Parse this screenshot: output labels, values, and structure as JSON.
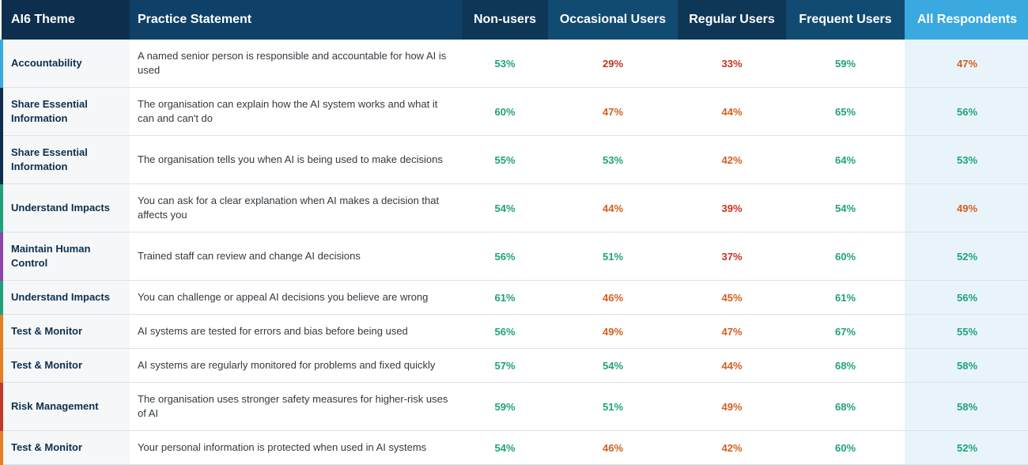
{
  "colors": {
    "header_dark": "#0d2f4d",
    "header_mid": "#124b72",
    "header_accent": "#3aa9e0",
    "good": "#1fa27a",
    "medium": "#d35f1e",
    "poor": "#c8321f"
  },
  "headers": {
    "theme": "AI6 Theme",
    "statement": "Practice Statement",
    "non_users": "Non-users",
    "occasional": "Occasional Users",
    "regular": "Regular Users",
    "frequent": "Frequent Users",
    "all": "All Respondents"
  },
  "rows": [
    {
      "theme": "Accountability",
      "theme_color": "#3aa9e0",
      "statement": "A named senior person is responsible and accountable for how AI is used",
      "non": "53%",
      "occ": "29%",
      "reg": "33%",
      "freq": "59%",
      "all": "47%",
      "c_non": "green",
      "c_occ": "red",
      "c_reg": "red",
      "c_freq": "green",
      "c_all": "orange"
    },
    {
      "theme": "Share Essential Information",
      "theme_color": "#0d2f4d",
      "statement": "The organisation can explain how the AI system works and what it can and can't do",
      "non": "60%",
      "occ": "47%",
      "reg": "44%",
      "freq": "65%",
      "all": "56%",
      "c_non": "green",
      "c_occ": "orange",
      "c_reg": "orange",
      "c_freq": "green",
      "c_all": "green"
    },
    {
      "theme": "Share Essential Information",
      "theme_color": "#0d2f4d",
      "statement": "The organisation tells you when AI is being used to make decisions",
      "non": "55%",
      "occ": "53%",
      "reg": "42%",
      "freq": "64%",
      "all": "53%",
      "c_non": "green",
      "c_occ": "green",
      "c_reg": "orange",
      "c_freq": "green",
      "c_all": "green"
    },
    {
      "theme": "Understand Impacts",
      "theme_color": "#1fa27a",
      "statement": "You can ask for a clear explanation when AI makes a decision that affects you",
      "non": "54%",
      "occ": "44%",
      "reg": "39%",
      "freq": "54%",
      "all": "49%",
      "c_non": "green",
      "c_occ": "orange",
      "c_reg": "red",
      "c_freq": "green",
      "c_all": "orange"
    },
    {
      "theme": "Maintain Human Control",
      "theme_color": "#8e44ad",
      "statement": "Trained staff can review and change AI decisions",
      "non": "56%",
      "occ": "51%",
      "reg": "37%",
      "freq": "60%",
      "all": "52%",
      "c_non": "green",
      "c_occ": "green",
      "c_reg": "red",
      "c_freq": "green",
      "c_all": "green"
    },
    {
      "theme": "Understand Impacts",
      "theme_color": "#1fa27a",
      "statement": "You can challenge or appeal AI decisions you believe are wrong",
      "non": "61%",
      "occ": "46%",
      "reg": "45%",
      "freq": "61%",
      "all": "56%",
      "c_non": "green",
      "c_occ": "orange",
      "c_reg": "orange",
      "c_freq": "green",
      "c_all": "green"
    },
    {
      "theme": "Test & Monitor",
      "theme_color": "#e67e22",
      "statement": "AI systems are tested for errors and bias before being used",
      "non": "56%",
      "occ": "49%",
      "reg": "47%",
      "freq": "67%",
      "all": "55%",
      "c_non": "green",
      "c_occ": "orange",
      "c_reg": "orange",
      "c_freq": "green",
      "c_all": "green"
    },
    {
      "theme": "Test & Monitor",
      "theme_color": "#e67e22",
      "statement": "AI systems are regularly monitored for problems and fixed quickly",
      "non": "57%",
      "occ": "54%",
      "reg": "44%",
      "freq": "68%",
      "all": "58%",
      "c_non": "green",
      "c_occ": "green",
      "c_reg": "orange",
      "c_freq": "green",
      "c_all": "green"
    },
    {
      "theme": "Risk Management",
      "theme_color": "#c0392b",
      "statement": "The organisation uses stronger safety measures for higher-risk uses of AI",
      "non": "59%",
      "occ": "51%",
      "reg": "49%",
      "freq": "68%",
      "all": "58%",
      "c_non": "green",
      "c_occ": "green",
      "c_reg": "orange",
      "c_freq": "green",
      "c_all": "green"
    },
    {
      "theme": "Test & Monitor",
      "theme_color": "#e67e22",
      "statement": "Your personal information is protected when used in AI systems",
      "non": "54%",
      "occ": "46%",
      "reg": "42%",
      "freq": "60%",
      "all": "52%",
      "c_non": "green",
      "c_occ": "orange",
      "c_reg": "orange",
      "c_freq": "green",
      "c_all": "green"
    }
  ]
}
